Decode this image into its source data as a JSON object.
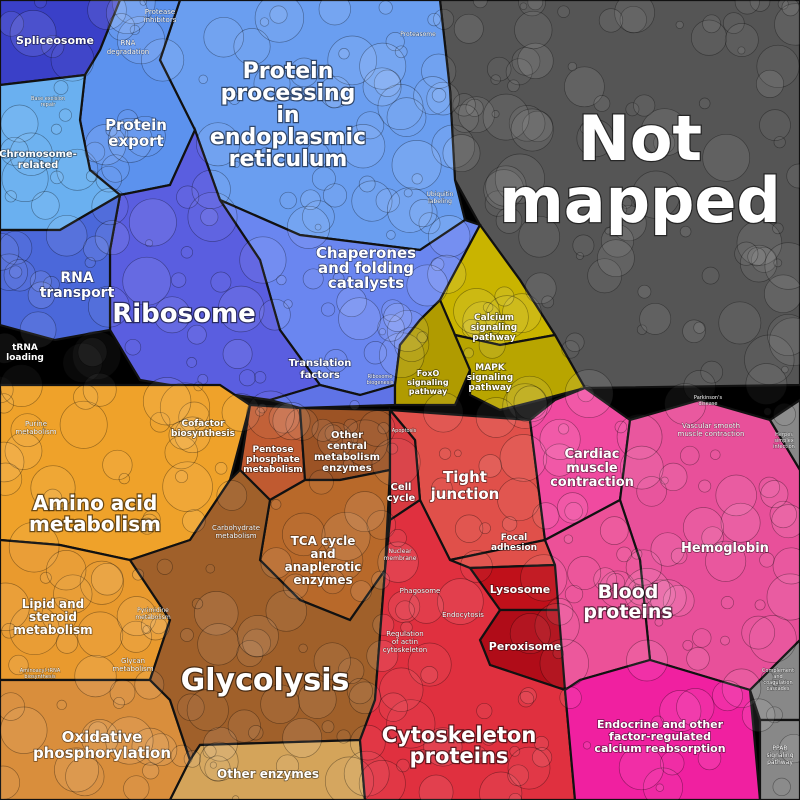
{
  "chart_data": {
    "type": "voronoi-treemap",
    "title": "",
    "colors": {
      "blue": "#5b7fe6",
      "gold": "#c9b400",
      "orange": "#eda52c",
      "brown": "#b8692a",
      "red": "#e0473f",
      "pink": "#ec5198",
      "grey": "#555555"
    },
    "categories": [
      {
        "name": "Not mapped",
        "color": "#555555"
      },
      {
        "name": "Protein processing in endoplasmic reticulum",
        "color": "#6a9ef0"
      },
      {
        "name": "Ribosome",
        "color": "#5a5ee0"
      },
      {
        "name": "Chaperones and folding catalysts",
        "color": "#6a86f0"
      },
      {
        "name": "Protein export",
        "color": "#5c92ee"
      },
      {
        "name": "RNA transport",
        "color": "#4b68da"
      },
      {
        "name": "Spliceosome",
        "color": "#3a40c8"
      },
      {
        "name": "Chromosome-related",
        "color": "#6ab0f0"
      },
      {
        "name": "Translation factors",
        "color": "#5f73e6"
      },
      {
        "name": "Calcium signaling pathway",
        "color": "#c9b400"
      },
      {
        "name": "MAPK signaling pathway",
        "color": "#b8a500"
      },
      {
        "name": "FoxO signaling pathway",
        "color": "#b09b00"
      },
      {
        "name": "Amino acid metabolism",
        "color": "#efa22a"
      },
      {
        "name": "Lipid and steroid metabolism",
        "color": "#e99a2e"
      },
      {
        "name": "Oxidative phosphorylation",
        "color": "#d98e3c"
      },
      {
        "name": "Glycolysis",
        "color": "#a0602a"
      },
      {
        "name": "TCA cycle and anaplerotic enzymes",
        "color": "#b8692a"
      },
      {
        "name": "Pentose phosphate metabolism",
        "color": "#c05a30"
      },
      {
        "name": "Other central metabolism enzymes",
        "color": "#9c5325"
      },
      {
        "name": "Other enzymes",
        "color": "#d4a45a"
      },
      {
        "name": "Tight junction",
        "color": "#e0504a"
      },
      {
        "name": "Cytoskeleton proteins",
        "color": "#e0303f"
      },
      {
        "name": "Lysosome",
        "color": "#c0101a"
      },
      {
        "name": "Peroxisome",
        "color": "#b00c18"
      },
      {
        "name": "Cell cycle",
        "color": "#d83a40"
      },
      {
        "name": "Focal adhesion",
        "color": "#e0504a"
      },
      {
        "name": "Blood proteins",
        "color": "#ec5198"
      },
      {
        "name": "Hemoglobin",
        "color": "#e8509a"
      },
      {
        "name": "Cardiac muscle contraction",
        "color": "#f04aa0"
      },
      {
        "name": "Endocrine and other factor-regulated calcium reabsorption",
        "color": "#f020a0"
      }
    ],
    "labels": {
      "not_mapped": [
        "Not",
        "mapped"
      ],
      "protein_processing": [
        "Protein",
        "processing",
        "in",
        "endoplasmic",
        "reticulum"
      ],
      "ribosome": "Ribosome",
      "chaperones": [
        "Chaperones",
        "and folding",
        "catalysts"
      ],
      "protein_export": [
        "Protein",
        "export"
      ],
      "rna_transport": [
        "RNA",
        "transport"
      ],
      "spliceosome": "Spliceosome",
      "chromosome": [
        "Chromosome-",
        "related"
      ],
      "rna_degradation": [
        "RNA",
        "degradation"
      ],
      "protease_inhibitors": [
        "Protease",
        "inhibitors"
      ],
      "proteasome": "Proteasome",
      "trna_loading": [
        "tRNA",
        "loading"
      ],
      "translation_factors": [
        "Translation",
        "factors"
      ],
      "ribosome_biogenesis": [
        "Ribosome",
        "biogenesis"
      ],
      "base_excision": [
        "Base excision",
        "repair"
      ],
      "ubiquitin": [
        "Ubiquitin",
        "labeling"
      ],
      "calcium": [
        "Calcium",
        "signaling",
        "pathway"
      ],
      "mapk": [
        "MAPK",
        "signaling",
        "pathway"
      ],
      "foxo": [
        "FoxO",
        "signaling",
        "pathway"
      ],
      "amino_acid": [
        "Amino acid",
        "metabolism"
      ],
      "lipid": [
        "Lipid and",
        "steroid",
        "metabolism"
      ],
      "oxphos": [
        "Oxidative",
        "phosphorylation"
      ],
      "glycolysis": "Glycolysis",
      "tca": [
        "TCA cycle",
        "and",
        "anaplerotic",
        "enzymes"
      ],
      "pentose": [
        "Pentose",
        "phosphate",
        "metabolism"
      ],
      "other_central": [
        "Other",
        "central",
        "metabolism",
        "enzymes"
      ],
      "other_enzymes": "Other enzymes",
      "purine": [
        "Purine",
        "metabolism"
      ],
      "cofactor": [
        "Cofactor",
        "biosynthesis"
      ],
      "carbohydrate": [
        "Carbohydrate",
        "metabolism"
      ],
      "pyrimidine": [
        "Pyrimidine",
        "metabolism"
      ],
      "glycan": [
        "Glycan",
        "metabolism"
      ],
      "aminoacyl": [
        "Aminoacyl-tRNA",
        "biosynthesis"
      ],
      "tight_junction": [
        "Tight",
        "junction"
      ],
      "cell_cycle": [
        "Cell",
        "cycle"
      ],
      "focal_adhesion": [
        "Focal",
        "adhesion"
      ],
      "nuclear_membrane": [
        "Nuclear",
        "membrane"
      ],
      "apoptosis": "Apoptosis",
      "phagosome": "Phagosome",
      "endocytosis": "Endocytosis",
      "lysosome": "Lysosome",
      "peroxisome": "Peroxisome",
      "regulation_actin": [
        "Regulation",
        "of actin",
        "cytoskeleton"
      ],
      "cytoskeleton": [
        "Cytoskeleton",
        "proteins"
      ],
      "cardiac": [
        "Cardiac",
        "muscle",
        "contraction"
      ],
      "hemoglobin": "Hemoglobin",
      "blood": [
        "Blood",
        "proteins"
      ],
      "vascular": [
        "Vascular smooth",
        "muscle contraction"
      ],
      "endocrine": [
        "Endocrine and other",
        "factor-regulated",
        "calcium reabsorption"
      ],
      "ppar": [
        "PPAR",
        "signaling",
        "pathway"
      ],
      "complement": [
        "Complement",
        "and",
        "coagulation",
        "cascades"
      ],
      "parkinsons": [
        "Parkinson's",
        "disease"
      ],
      "herpes": [
        "Herpes",
        "simplex",
        "infection"
      ]
    }
  }
}
